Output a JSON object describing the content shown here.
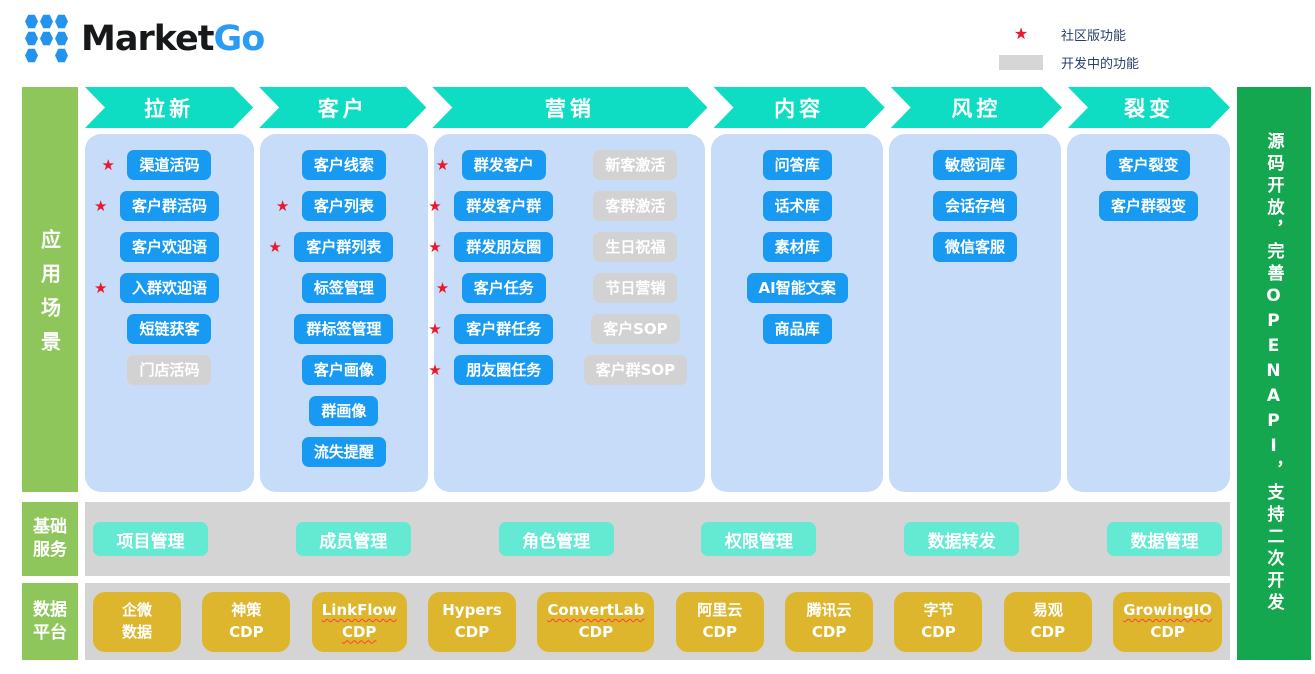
{
  "header": {
    "logo": {
      "market": "Market",
      "go": "Go"
    },
    "legend": [
      {
        "icon": "red-star-icon",
        "label": "社区版功能"
      },
      {
        "icon": "gray-box-icon",
        "label": "开发中的功能"
      }
    ]
  },
  "rails": {
    "left": [
      {
        "label": "应用场景"
      },
      {
        "label": "基础服务"
      },
      {
        "label": "数据平台"
      }
    ],
    "right": {
      "label": "源码开放，完善OPENAPI，支持二次开发"
    }
  },
  "scenario_columns": [
    {
      "title": "拉新",
      "groups": [
        [
          {
            "label": "渠道活码",
            "star": true
          },
          {
            "label": "客户群活码",
            "star": true
          },
          {
            "label": "客户欢迎语"
          },
          {
            "label": "入群欢迎语",
            "star": true
          },
          {
            "label": "短链获客"
          },
          {
            "label": "门店活码",
            "dev": true
          }
        ]
      ]
    },
    {
      "title": "客户",
      "groups": [
        [
          {
            "label": "客户线索"
          },
          {
            "label": "客户列表",
            "star": true
          },
          {
            "label": "客户群列表",
            "star": true
          },
          {
            "label": "标签管理"
          },
          {
            "label": "群标签管理"
          },
          {
            "label": "客户画像"
          },
          {
            "label": "群画像"
          },
          {
            "label": "流失提醒"
          }
        ]
      ]
    },
    {
      "title": "营销",
      "groups": [
        [
          {
            "label": "群发客户",
            "star": true
          },
          {
            "label": "群发客户群",
            "star": true
          },
          {
            "label": "群发朋友圈",
            "star": true
          },
          {
            "label": "客户任务",
            "star": true
          },
          {
            "label": "客户群任务",
            "star": true
          },
          {
            "label": "朋友圈任务",
            "star": true
          }
        ],
        [
          {
            "label": "新客激活",
            "dev": true
          },
          {
            "label": "客群激活",
            "dev": true
          },
          {
            "label": "生日祝福",
            "dev": true
          },
          {
            "label": "节日营销",
            "dev": true
          },
          {
            "label": "客户SOP",
            "dev": true
          },
          {
            "label": "客户群SOP",
            "dev": true
          }
        ]
      ]
    },
    {
      "title": "内容",
      "groups": [
        [
          {
            "label": "问答库"
          },
          {
            "label": "话术库"
          },
          {
            "label": "素材库"
          },
          {
            "label": "AI智能文案"
          },
          {
            "label": "商品库"
          }
        ]
      ]
    },
    {
      "title": "风控",
      "groups": [
        [
          {
            "label": "敏感词库"
          },
          {
            "label": "会话存档"
          },
          {
            "label": "微信客服"
          }
        ]
      ]
    },
    {
      "title": "裂变",
      "groups": [
        [
          {
            "label": "客户裂变"
          },
          {
            "label": "客户群裂变"
          }
        ]
      ]
    }
  ],
  "basic_services": [
    "项目管理",
    "成员管理",
    "角色管理",
    "权限管理",
    "数据转发",
    "数据管理"
  ],
  "data_platforms": [
    {
      "lines": [
        {
          "text": "企微"
        },
        {
          "text": "数据"
        }
      ]
    },
    {
      "lines": [
        {
          "text": "神策"
        },
        {
          "text": "CDP"
        }
      ]
    },
    {
      "lines": [
        {
          "text": "LinkFlow",
          "wavy": true
        },
        {
          "text": "CDP",
          "wavy": true
        }
      ]
    },
    {
      "lines": [
        {
          "text": "Hypers"
        },
        {
          "text": "CDP"
        }
      ]
    },
    {
      "lines": [
        {
          "text": "ConvertLab",
          "wavy": true
        },
        {
          "text": "CDP"
        }
      ]
    },
    {
      "lines": [
        {
          "text": "阿里云"
        },
        {
          "text": "CDP"
        }
      ]
    },
    {
      "lines": [
        {
          "text": "腾讯云"
        },
        {
          "text": "CDP"
        }
      ]
    },
    {
      "lines": [
        {
          "text": "字节"
        },
        {
          "text": "CDP"
        }
      ]
    },
    {
      "lines": [
        {
          "text": "易观"
        },
        {
          "text": "CDP"
        }
      ]
    },
    {
      "lines": [
        {
          "text": "GrowingIO",
          "wavy": true
        },
        {
          "text": "CDP"
        }
      ]
    }
  ],
  "colors": {
    "stage_arrow": "#0edcc3",
    "column_bg": "#c7dcf8",
    "feature_blue": "#189af2",
    "feature_dev_gray": "#d2d2d2",
    "service_mint": "#64e9d2",
    "strip_gray": "#d4d4d4",
    "platform_gold": "#ddb62e",
    "rail_light_green": "#8fc65b",
    "rail_dark_green": "#14a750",
    "star_red": "#e8182d",
    "logo_blue": "#2b9cf2"
  }
}
